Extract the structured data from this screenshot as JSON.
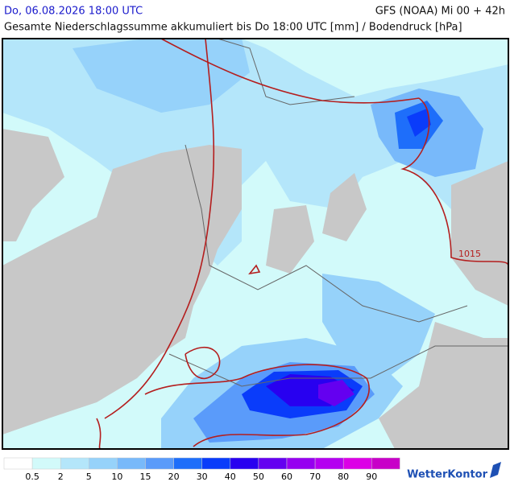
{
  "header": {
    "datetime": "Do, 06.08.2026 18:00 UTC",
    "model": "GFS (NOAA) Mi 00 + 42h",
    "subtitle": "Gesamte Niederschlagssumme akkumuliert bis Do 18:00 UTC [mm] / Bodendruck [hPa]"
  },
  "map": {
    "isobar_label": "1015"
  },
  "legend": {
    "labels": [
      0.5,
      2,
      5,
      10,
      15,
      20,
      30,
      40,
      50,
      60,
      70,
      80,
      90
    ],
    "colors": [
      "#ffffff",
      "#d2fafa",
      "#b4e6fa",
      "#96d2fa",
      "#78b9fa",
      "#5a9bfa",
      "#1e6efa",
      "#0a3cfa",
      "#2800f0",
      "#6400f0",
      "#9600f0",
      "#b400f0",
      "#dc00e6",
      "#c800c8"
    ]
  },
  "brand": "WetterKontor"
}
